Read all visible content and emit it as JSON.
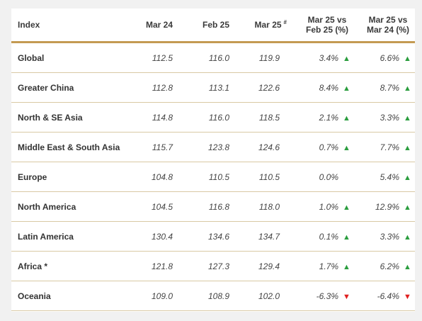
{
  "headers": {
    "index": "Index",
    "mar24": "Mar 24",
    "feb25": "Feb 25",
    "mar25": "Mar 25",
    "mar25_sup": "#",
    "mom_line1": "Mar 25 vs",
    "mom_line2": "Feb 25 (%)",
    "yoy_line1": "Mar 25 vs",
    "yoy_line2": "Mar 24 (%)"
  },
  "colors": {
    "accent": "#c49a52",
    "up": "#2a9d3e",
    "down": "#e02020"
  },
  "rows": [
    {
      "name": "Global",
      "mar24": "112.5",
      "feb25": "116.0",
      "mar25": "119.9",
      "mom": "3.4%",
      "mom_dir": "up",
      "yoy": "6.6%",
      "yoy_dir": "up"
    },
    {
      "name": "Greater China",
      "mar24": "112.8",
      "feb25": "113.1",
      "mar25": "122.6",
      "mom": "8.4%",
      "mom_dir": "up",
      "yoy": "8.7%",
      "yoy_dir": "up"
    },
    {
      "name": "North & SE Asia",
      "mar24": "114.8",
      "feb25": "116.0",
      "mar25": "118.5",
      "mom": "2.1%",
      "mom_dir": "up",
      "yoy": "3.3%",
      "yoy_dir": "up"
    },
    {
      "name": "Middle East & South Asia",
      "mar24": "115.7",
      "feb25": "123.8",
      "mar25": "124.6",
      "mom": "0.7%",
      "mom_dir": "up",
      "yoy": "7.7%",
      "yoy_dir": "up"
    },
    {
      "name": "Europe",
      "mar24": "104.8",
      "feb25": "110.5",
      "mar25": "110.5",
      "mom": "0.0%",
      "mom_dir": "none",
      "yoy": "5.4%",
      "yoy_dir": "up"
    },
    {
      "name": "North America",
      "mar24": "104.5",
      "feb25": "116.8",
      "mar25": "118.0",
      "mom": "1.0%",
      "mom_dir": "up",
      "yoy": "12.9%",
      "yoy_dir": "up"
    },
    {
      "name": "Latin America",
      "mar24": "130.4",
      "feb25": "134.6",
      "mar25": "134.7",
      "mom": "0.1%",
      "mom_dir": "up",
      "yoy": "3.3%",
      "yoy_dir": "up"
    },
    {
      "name": "Africa *",
      "mar24": "121.8",
      "feb25": "127.3",
      "mar25": "129.4",
      "mom": "1.7%",
      "mom_dir": "up",
      "yoy": "6.2%",
      "yoy_dir": "up"
    },
    {
      "name": "Oceania",
      "mar24": "109.0",
      "feb25": "108.9",
      "mar25": "102.0",
      "mom": "-6.3%",
      "mom_dir": "down",
      "yoy": "-6.4%",
      "yoy_dir": "down"
    }
  ]
}
